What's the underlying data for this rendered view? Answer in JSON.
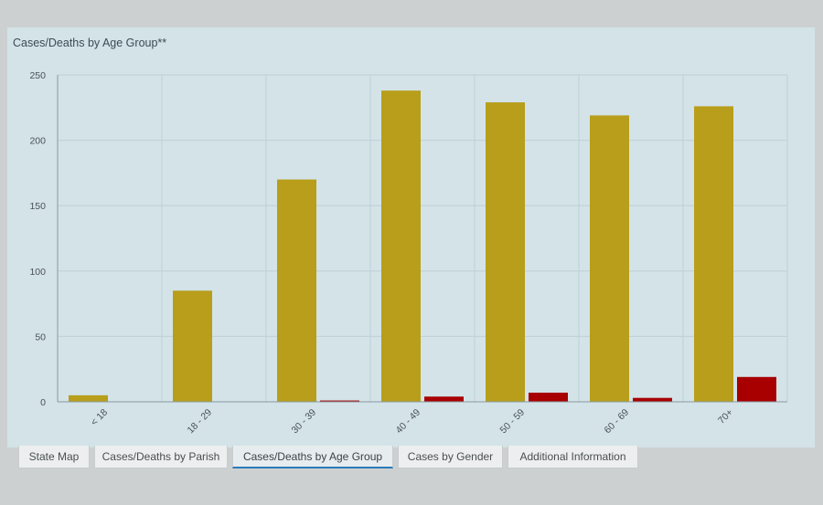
{
  "panel": {
    "title": "Cases/Deaths by Age Group**"
  },
  "colors": {
    "cases": "#b89e1a",
    "deaths": "#a80000",
    "grid": "#bfd0d6",
    "axis": "#8a9aa1",
    "tick_text": "#4a5257"
  },
  "chart_data": {
    "type": "bar",
    "title": "Cases/Deaths by Age Group**",
    "xlabel": "",
    "ylabel": "",
    "categories": [
      "< 18",
      "18 - 29",
      "30 - 39",
      "40 - 49",
      "50 - 59",
      "60 - 69",
      "70+"
    ],
    "series": [
      {
        "values": [
          5,
          85,
          170,
          238,
          229,
          219,
          226
        ]
      },
      {
        "values": [
          0,
          0,
          1,
          4,
          7,
          3,
          19
        ]
      }
    ],
    "yticks": [
      "0",
      "50",
      "100",
      "150",
      "200",
      "250"
    ],
    "ylim": [
      0,
      250
    ],
    "grid": true
  },
  "tabs": [
    {
      "label": "State Map",
      "active": false
    },
    {
      "label": "Cases/Deaths by Parish",
      "active": false
    },
    {
      "label": "Cases/Deaths by Age Group",
      "active": true
    },
    {
      "label": "Cases by Gender",
      "active": false
    },
    {
      "label": "Additional Information",
      "active": false
    }
  ]
}
